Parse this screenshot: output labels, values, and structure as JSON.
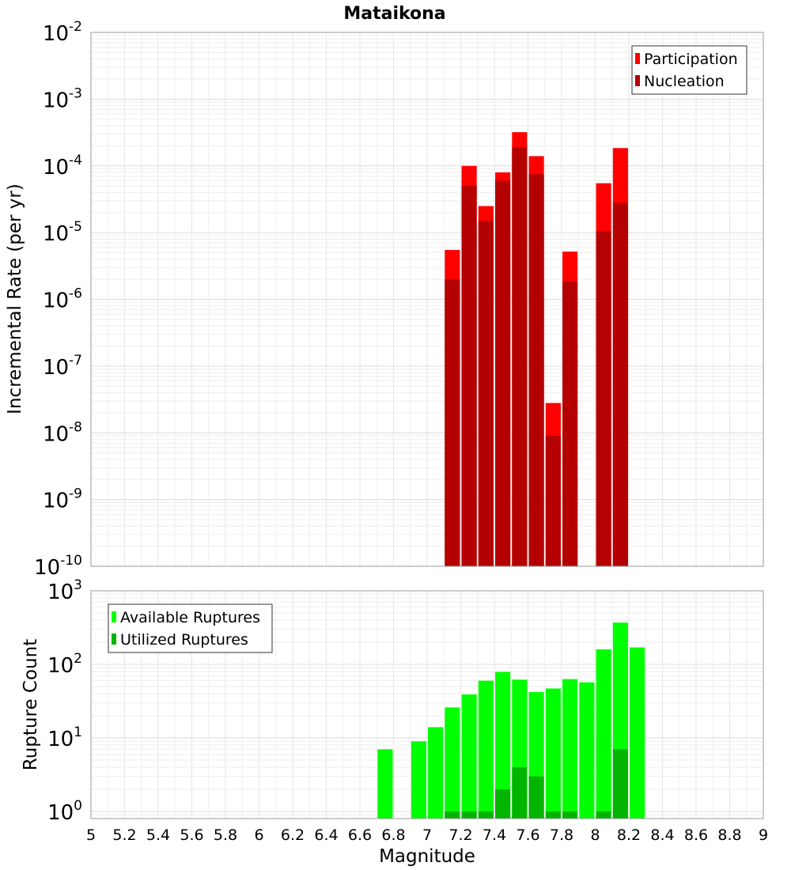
{
  "chart_data": [
    {
      "type": "bar",
      "title": "Mataikona",
      "ylabel": "Incremental Rate (per yr)",
      "yscale": "log",
      "ylim": [
        1e-10,
        0.01
      ],
      "xlim": [
        5,
        9
      ],
      "ytick_exponents": [
        -10,
        -9,
        -8,
        -7,
        -6,
        -5,
        -4,
        -3,
        -2
      ],
      "bar_width": 0.09,
      "legend": {
        "position": "top-right",
        "entries": [
          "Participation",
          "Nucleation"
        ]
      },
      "grid": true,
      "overlay": true,
      "series": [
        {
          "name": "Participation",
          "color": "#ff0000",
          "points": [
            {
              "x": 7.15,
              "y": 5.5e-06
            },
            {
              "x": 7.25,
              "y": 0.0001
            },
            {
              "x": 7.35,
              "y": 2.5e-05
            },
            {
              "x": 7.45,
              "y": 8e-05
            },
            {
              "x": 7.55,
              "y": 0.00032
            },
            {
              "x": 7.65,
              "y": 0.00014
            },
            {
              "x": 7.75,
              "y": 2.8e-08
            },
            {
              "x": 7.85,
              "y": 5.2e-06
            },
            {
              "x": 8.05,
              "y": 5.5e-05
            },
            {
              "x": 8.15,
              "y": 0.000185
            }
          ]
        },
        {
          "name": "Nucleation",
          "color": "#b40000",
          "points": [
            {
              "x": 7.15,
              "y": 2e-06
            },
            {
              "x": 7.25,
              "y": 5e-05
            },
            {
              "x": 7.35,
              "y": 1.5e-05
            },
            {
              "x": 7.45,
              "y": 6e-05
            },
            {
              "x": 7.55,
              "y": 0.00019
            },
            {
              "x": 7.65,
              "y": 7.5e-05
            },
            {
              "x": 7.75,
              "y": 9e-09
            },
            {
              "x": 7.85,
              "y": 1.85e-06
            },
            {
              "x": 8.05,
              "y": 1.05e-05
            },
            {
              "x": 8.15,
              "y": 2.8e-05
            }
          ]
        }
      ]
    },
    {
      "type": "bar",
      "title": "",
      "xlabel": "Magnitude",
      "ylabel": "Rupture Count",
      "yscale": "log",
      "ylim": [
        0.8,
        1000
      ],
      "xlim": [
        5,
        9
      ],
      "ytick_exponents": [
        0,
        1,
        2,
        3
      ],
      "bar_width": 0.09,
      "legend": {
        "position": "top-left",
        "entries": [
          "Available Ruptures",
          "Utilized Ruptures"
        ]
      },
      "grid": true,
      "overlay": true,
      "x_ticks": [
        "5",
        "5.2",
        "5.4",
        "5.6",
        "5.8",
        "6",
        "6.2",
        "6.4",
        "6.6",
        "6.8",
        "7",
        "7.2",
        "7.4",
        "7.6",
        "7.8",
        "8",
        "8.2",
        "8.4",
        "8.6",
        "8.8",
        "9"
      ],
      "series": [
        {
          "name": "Available Ruptures",
          "color": "#00ff00",
          "points": [
            {
              "x": 6.75,
              "y": 7
            },
            {
              "x": 6.95,
              "y": 9
            },
            {
              "x": 7.05,
              "y": 14
            },
            {
              "x": 7.15,
              "y": 26
            },
            {
              "x": 7.25,
              "y": 39
            },
            {
              "x": 7.35,
              "y": 60
            },
            {
              "x": 7.45,
              "y": 79
            },
            {
              "x": 7.55,
              "y": 62
            },
            {
              "x": 7.65,
              "y": 42
            },
            {
              "x": 7.75,
              "y": 47
            },
            {
              "x": 7.85,
              "y": 63
            },
            {
              "x": 7.95,
              "y": 57
            },
            {
              "x": 8.05,
              "y": 160
            },
            {
              "x": 8.15,
              "y": 370
            },
            {
              "x": 8.25,
              "y": 170
            }
          ]
        },
        {
          "name": "Utilized Ruptures",
          "color": "#00b400",
          "points": [
            {
              "x": 7.15,
              "y": 1
            },
            {
              "x": 7.25,
              "y": 1
            },
            {
              "x": 7.35,
              "y": 1
            },
            {
              "x": 7.45,
              "y": 2
            },
            {
              "x": 7.55,
              "y": 4
            },
            {
              "x": 7.65,
              "y": 3
            },
            {
              "x": 7.75,
              "y": 1
            },
            {
              "x": 7.85,
              "y": 1
            },
            {
              "x": 8.05,
              "y": 1
            },
            {
              "x": 8.15,
              "y": 7
            }
          ]
        }
      ]
    }
  ]
}
